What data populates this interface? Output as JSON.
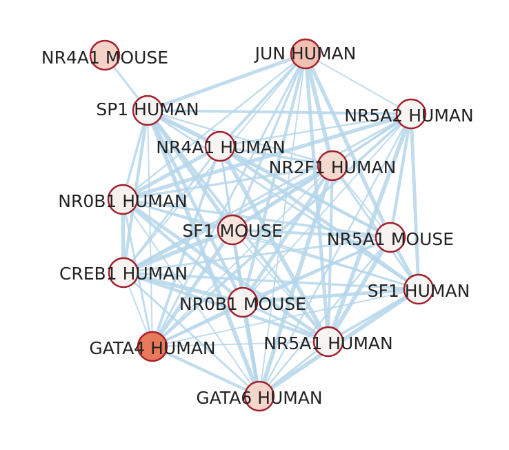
{
  "colors": {
    "edge": "#b5d6ea",
    "node_stroke": "#a3202c",
    "label": "#222222"
  },
  "nodes": [
    {
      "id": "NR4A1_MOUSE",
      "label": "NR4A1 MOUSE",
      "fill": "#f5d2c7"
    },
    {
      "id": "JUN_HUMAN",
      "label": "JUN HUMAN",
      "fill": "#f2c0b0"
    },
    {
      "id": "SP1_HUMAN",
      "label": "SP1 HUMAN",
      "fill": "#f7f5f4"
    },
    {
      "id": "NR5A2_HUMAN",
      "label": "NR5A2 HUMAN",
      "fill": "#f7f5f4"
    },
    {
      "id": "NR4A1_HUMAN",
      "label": "NR4A1 HUMAN",
      "fill": "#f7f5f4"
    },
    {
      "id": "NR2F1_HUMAN",
      "label": "NR2F1 HUMAN",
      "fill": "#f5dad0"
    },
    {
      "id": "NR0B1_HUMAN",
      "label": "NR0B1 HUMAN",
      "fill": "#f7f1ee"
    },
    {
      "id": "SF1_MOUSE",
      "label": "SF1 MOUSE",
      "fill": "#f7e6e0"
    },
    {
      "id": "NR5A1_MOUSE",
      "label": "NR5A1 MOUSE",
      "fill": "#f7f3f1"
    },
    {
      "id": "CREB1_HUMAN",
      "label": "CREB1 HUMAN",
      "fill": "#f7f3f1"
    },
    {
      "id": "SF1_HUMAN",
      "label": "SF1 HUMAN",
      "fill": "#f7f5f4"
    },
    {
      "id": "NR0B1_MOUSE",
      "label": "NR0B1 MOUSE",
      "fill": "#f7f3f1"
    },
    {
      "id": "GATA4_HUMAN",
      "label": "GATA4 HUMAN",
      "fill": "#e8795a"
    },
    {
      "id": "NR5A1_HUMAN",
      "label": "NR5A1 HUMAN",
      "fill": "#f7f5f4"
    },
    {
      "id": "GATA6_HUMAN",
      "label": "GATA6 HUMAN",
      "fill": "#f5d6cc"
    }
  ],
  "edges": [
    [
      "NR4A1_MOUSE",
      "SP1_HUMAN"
    ],
    [
      "JUN_HUMAN",
      "SP1_HUMAN"
    ],
    [
      "JUN_HUMAN",
      "NR5A2_HUMAN"
    ],
    [
      "JUN_HUMAN",
      "NR4A1_HUMAN"
    ],
    [
      "JUN_HUMAN",
      "NR2F1_HUMAN"
    ],
    [
      "JUN_HUMAN",
      "NR0B1_HUMAN"
    ],
    [
      "JUN_HUMAN",
      "SF1_MOUSE"
    ],
    [
      "JUN_HUMAN",
      "NR5A1_MOUSE"
    ],
    [
      "JUN_HUMAN",
      "CREB1_HUMAN"
    ],
    [
      "JUN_HUMAN",
      "NR0B1_MOUSE"
    ],
    [
      "JUN_HUMAN",
      "GATA4_HUMAN"
    ],
    [
      "JUN_HUMAN",
      "NR5A1_HUMAN"
    ],
    [
      "JUN_HUMAN",
      "GATA6_HUMAN"
    ],
    [
      "SP1_HUMAN",
      "NR5A2_HUMAN"
    ],
    [
      "SP1_HUMAN",
      "NR4A1_HUMAN"
    ],
    [
      "SP1_HUMAN",
      "NR2F1_HUMAN"
    ],
    [
      "SP1_HUMAN",
      "NR0B1_HUMAN"
    ],
    [
      "SP1_HUMAN",
      "SF1_MOUSE"
    ],
    [
      "SP1_HUMAN",
      "NR5A1_MOUSE"
    ],
    [
      "SP1_HUMAN",
      "CREB1_HUMAN"
    ],
    [
      "SP1_HUMAN",
      "SF1_HUMAN"
    ],
    [
      "SP1_HUMAN",
      "NR0B1_MOUSE"
    ],
    [
      "SP1_HUMAN",
      "GATA4_HUMAN"
    ],
    [
      "SP1_HUMAN",
      "NR5A1_HUMAN"
    ],
    [
      "SP1_HUMAN",
      "GATA6_HUMAN"
    ],
    [
      "NR5A2_HUMAN",
      "NR4A1_HUMAN"
    ],
    [
      "NR5A2_HUMAN",
      "NR2F1_HUMAN"
    ],
    [
      "NR5A2_HUMAN",
      "NR0B1_HUMAN"
    ],
    [
      "NR5A2_HUMAN",
      "SF1_MOUSE"
    ],
    [
      "NR5A2_HUMAN",
      "NR5A1_MOUSE"
    ],
    [
      "NR5A2_HUMAN",
      "CREB1_HUMAN"
    ],
    [
      "NR5A2_HUMAN",
      "SF1_HUMAN"
    ],
    [
      "NR5A2_HUMAN",
      "NR0B1_MOUSE"
    ],
    [
      "NR5A2_HUMAN",
      "GATA4_HUMAN"
    ],
    [
      "NR5A2_HUMAN",
      "NR5A1_HUMAN"
    ],
    [
      "NR5A2_HUMAN",
      "GATA6_HUMAN"
    ],
    [
      "NR4A1_HUMAN",
      "NR2F1_HUMAN"
    ],
    [
      "NR4A1_HUMAN",
      "NR0B1_HUMAN"
    ],
    [
      "NR4A1_HUMAN",
      "SF1_MOUSE"
    ],
    [
      "NR4A1_HUMAN",
      "NR5A1_MOUSE"
    ],
    [
      "NR4A1_HUMAN",
      "CREB1_HUMAN"
    ],
    [
      "NR4A1_HUMAN",
      "SF1_HUMAN"
    ],
    [
      "NR4A1_HUMAN",
      "NR0B1_MOUSE"
    ],
    [
      "NR4A1_HUMAN",
      "GATA4_HUMAN"
    ],
    [
      "NR4A1_HUMAN",
      "NR5A1_HUMAN"
    ],
    [
      "NR4A1_HUMAN",
      "GATA6_HUMAN"
    ],
    [
      "NR2F1_HUMAN",
      "NR0B1_HUMAN"
    ],
    [
      "NR2F1_HUMAN",
      "SF1_MOUSE"
    ],
    [
      "NR2F1_HUMAN",
      "NR5A1_MOUSE"
    ],
    [
      "NR2F1_HUMAN",
      "CREB1_HUMAN"
    ],
    [
      "NR2F1_HUMAN",
      "SF1_HUMAN"
    ],
    [
      "NR2F1_HUMAN",
      "NR0B1_MOUSE"
    ],
    [
      "NR2F1_HUMAN",
      "GATA4_HUMAN"
    ],
    [
      "NR2F1_HUMAN",
      "NR5A1_HUMAN"
    ],
    [
      "NR2F1_HUMAN",
      "GATA6_HUMAN"
    ],
    [
      "NR0B1_HUMAN",
      "SF1_MOUSE"
    ],
    [
      "NR0B1_HUMAN",
      "NR5A1_MOUSE"
    ],
    [
      "NR0B1_HUMAN",
      "CREB1_HUMAN"
    ],
    [
      "NR0B1_HUMAN",
      "SF1_HUMAN"
    ],
    [
      "NR0B1_HUMAN",
      "NR0B1_MOUSE"
    ],
    [
      "NR0B1_HUMAN",
      "GATA4_HUMAN"
    ],
    [
      "NR0B1_HUMAN",
      "NR5A1_HUMAN"
    ],
    [
      "NR0B1_HUMAN",
      "GATA6_HUMAN"
    ],
    [
      "SF1_MOUSE",
      "NR5A1_MOUSE"
    ],
    [
      "SF1_MOUSE",
      "CREB1_HUMAN"
    ],
    [
      "SF1_MOUSE",
      "SF1_HUMAN"
    ],
    [
      "SF1_MOUSE",
      "NR0B1_MOUSE"
    ],
    [
      "SF1_MOUSE",
      "GATA4_HUMAN"
    ],
    [
      "SF1_MOUSE",
      "NR5A1_HUMAN"
    ],
    [
      "SF1_MOUSE",
      "GATA6_HUMAN"
    ],
    [
      "NR5A1_MOUSE",
      "CREB1_HUMAN"
    ],
    [
      "NR5A1_MOUSE",
      "SF1_HUMAN"
    ],
    [
      "NR5A1_MOUSE",
      "NR0B1_MOUSE"
    ],
    [
      "NR5A1_MOUSE",
      "GATA4_HUMAN"
    ],
    [
      "NR5A1_MOUSE",
      "NR5A1_HUMAN"
    ],
    [
      "NR5A1_MOUSE",
      "GATA6_HUMAN"
    ],
    [
      "CREB1_HUMAN",
      "SF1_HUMAN"
    ],
    [
      "CREB1_HUMAN",
      "NR0B1_MOUSE"
    ],
    [
      "CREB1_HUMAN",
      "GATA4_HUMAN"
    ],
    [
      "CREB1_HUMAN",
      "NR5A1_HUMAN"
    ],
    [
      "CREB1_HUMAN",
      "GATA6_HUMAN"
    ],
    [
      "SF1_HUMAN",
      "NR0B1_MOUSE"
    ],
    [
      "SF1_HUMAN",
      "GATA4_HUMAN"
    ],
    [
      "SF1_HUMAN",
      "NR5A1_HUMAN"
    ],
    [
      "SF1_HUMAN",
      "GATA6_HUMAN"
    ],
    [
      "NR0B1_MOUSE",
      "GATA4_HUMAN"
    ],
    [
      "NR0B1_MOUSE",
      "NR5A1_HUMAN"
    ],
    [
      "NR0B1_MOUSE",
      "GATA6_HUMAN"
    ],
    [
      "GATA4_HUMAN",
      "NR5A1_HUMAN"
    ],
    [
      "GATA4_HUMAN",
      "GATA6_HUMAN"
    ],
    [
      "NR5A1_HUMAN",
      "GATA6_HUMAN"
    ]
  ]
}
